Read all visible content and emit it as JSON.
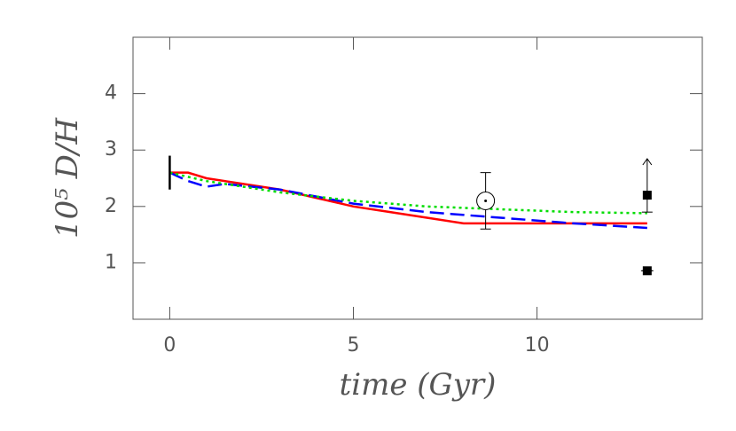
{
  "chart_data": {
    "type": "line",
    "xlabel": "time (Gyr)",
    "ylabel": "10⁵ D/H",
    "xlim": [
      -1,
      14.5
    ],
    "ylim": [
      0,
      5
    ],
    "xticks": [
      0,
      5,
      10
    ],
    "yticks": [
      1,
      2,
      3,
      4
    ],
    "series": [
      {
        "color": "#ff0000",
        "dash": "solid",
        "x": [
          0,
          0.5,
          1,
          2,
          3,
          4,
          5,
          6,
          7,
          8,
          9,
          10,
          11,
          12,
          13
        ],
        "values": [
          2.6,
          2.6,
          2.5,
          2.4,
          2.3,
          2.15,
          2.0,
          1.9,
          1.8,
          1.7,
          1.7,
          1.7,
          1.7,
          1.7,
          1.7
        ]
      },
      {
        "color": "#0000ff",
        "dash": "dashed",
        "x": [
          0,
          0.5,
          1,
          1.5,
          3,
          5,
          7,
          9,
          11,
          13
        ],
        "values": [
          2.6,
          2.45,
          2.35,
          2.4,
          2.3,
          2.05,
          1.9,
          1.8,
          1.7,
          1.62
        ]
      },
      {
        "color": "#00dd00",
        "dash": "dotted",
        "x": [
          0,
          1,
          3,
          5,
          7,
          9,
          11,
          13
        ],
        "values": [
          2.6,
          2.45,
          2.25,
          2.1,
          2.0,
          1.95,
          1.9,
          1.88
        ]
      }
    ],
    "points": [
      {
        "x": 0,
        "y": 2.6,
        "err": 0.3,
        "marker": "bar"
      },
      {
        "x": 8.6,
        "y": 2.1,
        "err": 0.5,
        "marker": "sun"
      },
      {
        "x": 13,
        "y": 2.2,
        "err": 0.3,
        "marker": "square-lower-limit"
      },
      {
        "x": 13,
        "y": 0.86,
        "err": 0,
        "marker": "square"
      }
    ]
  }
}
